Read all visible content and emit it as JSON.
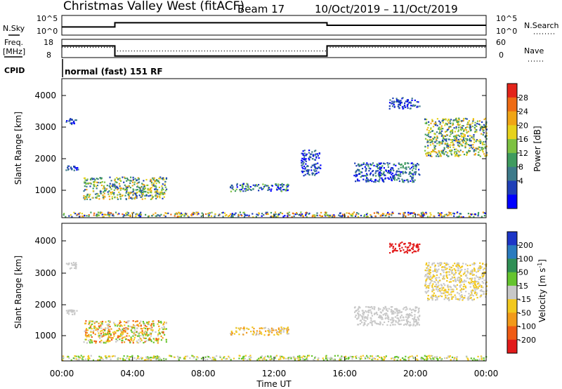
{
  "title": {
    "station": "Christmas Valley West (fitACF)",
    "beam": "Beam 17",
    "dates": "10/Oct/2019 – 11/Oct/2019"
  },
  "top_panels": {
    "noise": {
      "left_label": "N.Sky",
      "right_label": "N.Search",
      "left_ticks": [
        "10^5",
        "10^0"
      ],
      "right_ticks": [
        "10^5",
        "10^0"
      ]
    },
    "freq": {
      "left_label_1": "Freq.",
      "left_label_2": "[MHz]",
      "right_label": "Nave",
      "left_ticks": [
        "18",
        "8"
      ],
      "right_ticks": [
        "60",
        "0"
      ]
    },
    "cpid": {
      "label": "CPID",
      "text": "normal (fast) 151 RF"
    }
  },
  "x_axis": {
    "ticks": [
      "00:00",
      "04:00",
      "08:00",
      "12:00",
      "16:00",
      "20:00",
      "00:00"
    ],
    "label": "Time UT"
  },
  "y_axis": {
    "ticks": [
      "1000",
      "2000",
      "3000",
      "4000"
    ],
    "label": "Slant Range [km]"
  },
  "power_colorbar": {
    "label": "Power [dB]",
    "ticks": [
      "4",
      "8",
      "12",
      "16",
      "20",
      "24",
      "28"
    ],
    "colors": [
      "#0000ff",
      "#1f3fb8",
      "#3d7a8a",
      "#3f9b5f",
      "#7dc142",
      "#e7d21c",
      "#f0a516",
      "#ee6b14",
      "#e3241a"
    ]
  },
  "velocity_colorbar": {
    "label": "Velocity [m s",
    "label_sup": "-1",
    "label_end": "]",
    "ticks": [
      "200",
      "100",
      "50",
      "15",
      "-15",
      "-50",
      "-100",
      "-200"
    ],
    "colors": [
      "#1c35c7",
      "#2a7bbf",
      "#2f8f55",
      "#65c42e",
      "#c8c8c8",
      "#f2c81e",
      "#f29a1a",
      "#ef5b14",
      "#e21a1a"
    ]
  },
  "chart_data": [
    {
      "type": "line",
      "panel": "noise",
      "x_hours": [
        0,
        3,
        3,
        15,
        15,
        24
      ],
      "series": [
        {
          "values": [
            0.4,
            0.4,
            0.65,
            0.65,
            0.5,
            0.5
          ]
        }
      ],
      "ylim": [
        0,
        1
      ]
    },
    {
      "type": "line",
      "panel": "frequency / nave",
      "x_hours": [
        0,
        3,
        3,
        15,
        15,
        24
      ],
      "series": [
        {
          "values": [
            14.5,
            14.5,
            8.5,
            8.5,
            14.5,
            14.5
          ]
        },
        {
          "values": [
            34,
            34,
            21,
            21,
            34,
            34
          ]
        }
      ],
      "ylim_freq": [
        8,
        18
      ],
      "ylim_nave": [
        0,
        60
      ]
    },
    {
      "type": "heatmap",
      "panel": "power",
      "xlim": [
        0,
        24
      ],
      "ylim": [
        180,
        4500
      ],
      "patches": [
        {
          "x": [
            1.2,
            5.9
          ],
          "y": [
            750,
            1450
          ],
          "c": [
            1,
            6
          ]
        },
        {
          "x": [
            9.5,
            12.8
          ],
          "y": [
            1000,
            1250
          ],
          "c": [
            0,
            4
          ]
        },
        {
          "x": [
            0,
            24
          ],
          "y": [
            200,
            350
          ],
          "c": [
            0,
            7
          ]
        },
        {
          "x": [
            0.2,
            0.9
          ],
          "y": [
            1650,
            1800
          ],
          "c": [
            0,
            2
          ]
        },
        {
          "x": [
            0.2,
            0.8
          ],
          "y": [
            3100,
            3300
          ],
          "c": [
            0,
            2
          ]
        },
        {
          "x": [
            16.5,
            20.2
          ],
          "y": [
            1300,
            1900
          ],
          "c": [
            0,
            3
          ]
        },
        {
          "x": [
            20.5,
            24
          ],
          "y": [
            2100,
            3300
          ],
          "c": [
            1,
            6
          ]
        },
        {
          "x": [
            13.5,
            14.6
          ],
          "y": [
            1500,
            2300
          ],
          "c": [
            0,
            2
          ]
        },
        {
          "x": [
            18.5,
            20.2
          ],
          "y": [
            3600,
            3950
          ],
          "c": [
            0,
            2
          ]
        }
      ]
    },
    {
      "type": "heatmap",
      "panel": "velocity",
      "xlim": [
        0,
        24
      ],
      "ylim": [
        180,
        4500
      ],
      "patches": [
        {
          "x": [
            1.2,
            5.9
          ],
          "y": [
            750,
            1450
          ],
          "c": [
            3,
            7
          ]
        },
        {
          "x": [
            9.5,
            12.8
          ],
          "y": [
            1000,
            1250
          ],
          "c": [
            4,
            6
          ]
        },
        {
          "x": [
            0,
            24
          ],
          "y": [
            200,
            350
          ],
          "c": [
            3,
            5
          ]
        },
        {
          "x": [
            0.2,
            0.9
          ],
          "y": [
            1650,
            1800
          ],
          "c": [
            4,
            4
          ]
        },
        {
          "x": [
            0.2,
            0.8
          ],
          "y": [
            3100,
            3300
          ],
          "c": [
            4,
            4
          ]
        },
        {
          "x": [
            16.5,
            20.2
          ],
          "y": [
            1300,
            1900
          ],
          "c": [
            4,
            4
          ]
        },
        {
          "x": [
            20.5,
            24
          ],
          "y": [
            2100,
            3300
          ],
          "c": [
            4,
            5
          ]
        },
        {
          "x": [
            18.5,
            20.2
          ],
          "y": [
            3600,
            3950
          ],
          "c": [
            8,
            8
          ]
        }
      ]
    }
  ]
}
